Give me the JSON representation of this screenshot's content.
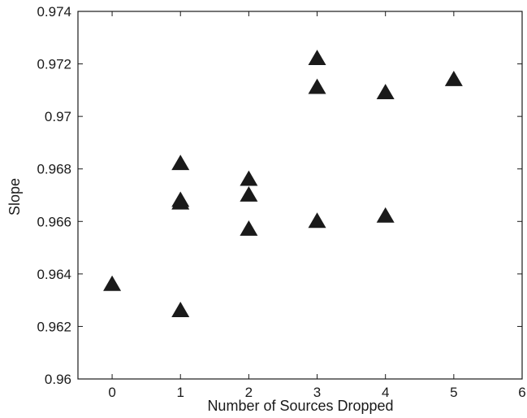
{
  "chart_data": {
    "type": "scatter",
    "title": "",
    "xlabel": "Number of Sources Dropped",
    "ylabel": "Slope",
    "xlim": [
      -0.5,
      6
    ],
    "ylim": [
      0.96,
      0.974
    ],
    "xticks": [
      0,
      1,
      2,
      3,
      4,
      5,
      6
    ],
    "yticks": [
      0.96,
      0.962,
      0.964,
      0.966,
      0.968,
      0.97,
      0.972,
      0.974
    ],
    "ytick_labels": [
      "0.96",
      "0.962",
      "0.964",
      "0.966",
      "0.968",
      "0.97",
      "0.972",
      "0.974"
    ],
    "grid": false,
    "marker": "filled-triangle",
    "marker_color": "#1a1a1a",
    "series": [
      {
        "points": [
          {
            "x": 0,
            "y": 0.9636
          },
          {
            "x": 1,
            "y": 0.9682
          },
          {
            "x": 1,
            "y": 0.9668
          },
          {
            "x": 1,
            "y": 0.9667
          },
          {
            "x": 1,
            "y": 0.9626
          },
          {
            "x": 2,
            "y": 0.9676
          },
          {
            "x": 2,
            "y": 0.967
          },
          {
            "x": 2,
            "y": 0.9657
          },
          {
            "x": 3,
            "y": 0.9722
          },
          {
            "x": 3,
            "y": 0.9711
          },
          {
            "x": 3,
            "y": 0.966
          },
          {
            "x": 4,
            "y": 0.9709
          },
          {
            "x": 4,
            "y": 0.9662
          },
          {
            "x": 5,
            "y": 0.9714
          }
        ]
      }
    ]
  }
}
